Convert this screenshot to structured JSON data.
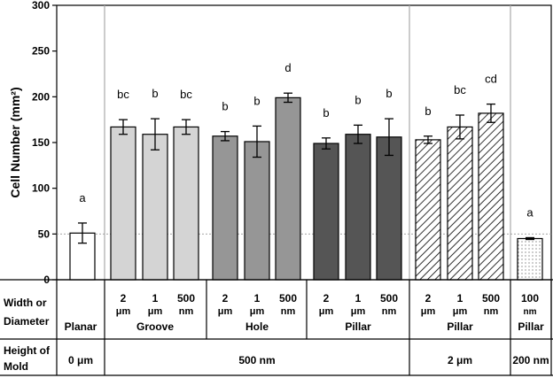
{
  "chart_data": {
    "type": "bar",
    "ylabel": "Cell Number (mm²)",
    "ylim": [
      0,
      300
    ],
    "yticks": [
      0,
      50,
      100,
      150,
      200,
      250,
      300
    ],
    "reference_line": 50,
    "bars": [
      {
        "group": "Planar",
        "size": "",
        "unit": "",
        "value": 51,
        "err": 11,
        "letter": "a",
        "fill": "white"
      },
      {
        "group": "Groove",
        "size": "2",
        "unit": "μm",
        "value": 167,
        "err": 8,
        "letter": "bc",
        "fill": "light"
      },
      {
        "group": "Groove",
        "size": "1",
        "unit": "μm",
        "value": 159,
        "err": 17,
        "letter": "b",
        "fill": "light"
      },
      {
        "group": "Groove",
        "size": "500",
        "unit": "nm",
        "value": 167,
        "err": 8,
        "letter": "bc",
        "fill": "light"
      },
      {
        "group": "Hole",
        "size": "2",
        "unit": "μm",
        "value": 157,
        "err": 5,
        "letter": "b",
        "fill": "mid"
      },
      {
        "group": "Hole",
        "size": "1",
        "unit": "μm",
        "value": 151,
        "err": 17,
        "letter": "b",
        "fill": "mid"
      },
      {
        "group": "Hole",
        "size": "500",
        "unit": "nm",
        "value": 199,
        "err": 5,
        "letter": "d",
        "fill": "mid"
      },
      {
        "group": "Pillar",
        "size": "2",
        "unit": "μm",
        "value": 149,
        "err": 6,
        "letter": "b",
        "fill": "dark"
      },
      {
        "group": "Pillar",
        "size": "1",
        "unit": "μm",
        "value": 159,
        "err": 10,
        "letter": "b",
        "fill": "dark"
      },
      {
        "group": "Pillar",
        "size": "500",
        "unit": "nm",
        "value": 156,
        "err": 20,
        "letter": "b",
        "fill": "dark"
      },
      {
        "group": "Pillar",
        "size": "2",
        "unit": "μm",
        "value": 153,
        "err": 4,
        "letter": "b",
        "fill": "hatch"
      },
      {
        "group": "Pillar",
        "size": "1",
        "unit": "μm",
        "value": 167,
        "err": 13,
        "letter": "bc",
        "fill": "hatch"
      },
      {
        "group": "Pillar",
        "size": "500",
        "unit": "nm",
        "value": 182,
        "err": 10,
        "letter": "cd",
        "fill": "hatch"
      },
      {
        "group": "Pillar",
        "size": "100",
        "unit": "nm",
        "value": 45,
        "err": 1,
        "letter": "a",
        "fill": "dots"
      }
    ],
    "table": {
      "row1_label": [
        "Width or",
        "Diameter"
      ],
      "row2_label": [
        "Height of",
        "Mold"
      ],
      "groups": [
        "Planar",
        "Groove",
        "Hole",
        "Pillar",
        "Pillar",
        "Pillar"
      ],
      "heights": [
        "0 μm",
        "500 nm",
        "2 μm",
        "200 nm"
      ]
    }
  },
  "colors": {
    "light": "#d4d4d4",
    "mid": "#969696",
    "dark": "#555555",
    "axis": "#000000",
    "separator": "#aaaaaa"
  }
}
